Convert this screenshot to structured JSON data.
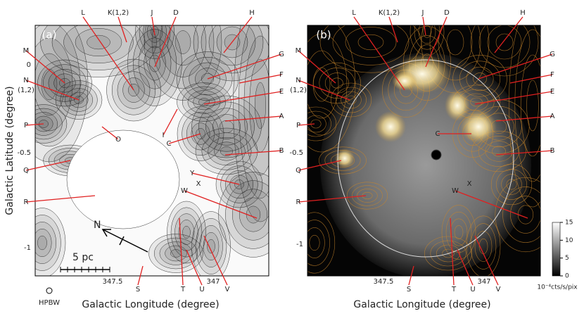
{
  "panels": [
    {
      "tag": "(a)",
      "y_axis_label": "Galactic Latitude (degree)",
      "x_axis_label": "Galactic Longitude (degree)",
      "y_tick_labels": [
        "0",
        "-0.5",
        "-1"
      ],
      "x_tick_labels": [
        "347.5",
        "347"
      ],
      "regions": [
        "L",
        "K(1,2)",
        "J",
        "D",
        "H",
        "M",
        "N",
        "(1,2)",
        "P",
        "Q",
        "R",
        "G",
        "F",
        "E",
        "A",
        "B",
        "O",
        "I",
        "C",
        "Y",
        "X",
        "W",
        "S",
        "T",
        "U",
        "V"
      ],
      "north": "N",
      "scale_bar": "5 pc",
      "beam": "HPBW"
    },
    {
      "tag": "(b)",
      "x_axis_label": "Galactic Longitude (degree)",
      "y_tick_labels": [
        "-0.5",
        "-1"
      ],
      "x_tick_labels": [
        "347.5",
        "347"
      ],
      "regions": [
        "L",
        "K(1,2)",
        "J",
        "D",
        "H",
        "M",
        "N",
        "(1,2)",
        "P",
        "Q",
        "R",
        "G",
        "F",
        "E",
        "A",
        "B",
        "C",
        "X",
        "W",
        "S",
        "T",
        "U",
        "V"
      ],
      "colorbar": {
        "tick_labels": [
          "0",
          "5",
          "10",
          "15"
        ],
        "unit": "10⁻⁴cts/s/pix"
      }
    }
  ]
}
